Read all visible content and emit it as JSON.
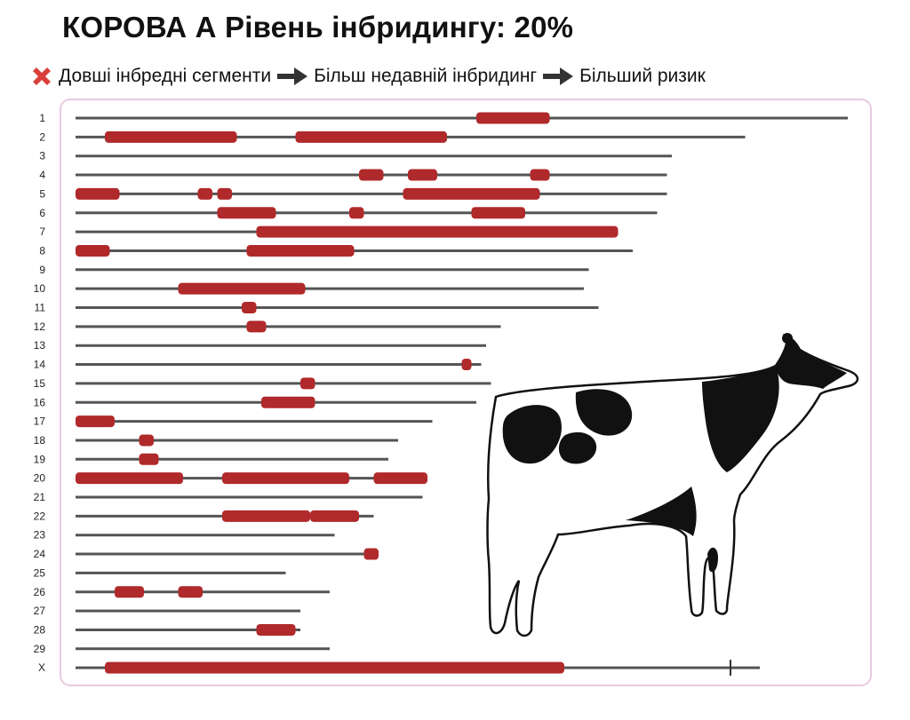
{
  "title": "КОРОВА А Рівень інбридингу: 20%",
  "legend": {
    "icon": "red-x-icon",
    "item1": "Довші інбредні сегменти",
    "arrow_icon": "right-arrow-icon",
    "item2": "Більш недавній інбридинг",
    "item3": "Більший ризик"
  },
  "colors": {
    "segment": "#b0292b",
    "chromosome": "#555555",
    "panel_border": "#e7cbe0",
    "x_mark": "#d9403a"
  },
  "chart_data": {
    "type": "diagram",
    "description_units": "relative chromosome position",
    "chromosomes": [
      {
        "label": "1",
        "length": 158,
        "segments": [
          [
            82,
            97
          ]
        ]
      },
      {
        "label": "2",
        "length": 137,
        "segments": [
          [
            6,
            33
          ],
          [
            45,
            76
          ]
        ]
      },
      {
        "label": "3",
        "length": 122,
        "segments": []
      },
      {
        "label": "4",
        "length": 121,
        "segments": [
          [
            58,
            63
          ],
          [
            68,
            74
          ],
          [
            93,
            97
          ]
        ]
      },
      {
        "label": "5",
        "length": 121,
        "segments": [
          [
            0,
            9
          ],
          [
            25,
            28
          ],
          [
            29,
            32
          ],
          [
            67,
            95
          ]
        ]
      },
      {
        "label": "6",
        "length": 119,
        "segments": [
          [
            29,
            41
          ],
          [
            56,
            59
          ],
          [
            81,
            92
          ]
        ]
      },
      {
        "label": "7",
        "length": 111,
        "segments": [
          [
            37,
            111
          ]
        ]
      },
      {
        "label": "8",
        "length": 114,
        "segments": [
          [
            0,
            7
          ],
          [
            35,
            57
          ]
        ]
      },
      {
        "label": "9",
        "length": 105,
        "segments": []
      },
      {
        "label": "10",
        "length": 104,
        "segments": [
          [
            21,
            47
          ]
        ]
      },
      {
        "label": "11",
        "length": 107,
        "segments": [
          [
            34,
            37
          ]
        ]
      },
      {
        "label": "12",
        "length": 87,
        "segments": [
          [
            35,
            39
          ]
        ]
      },
      {
        "label": "13",
        "length": 84,
        "segments": []
      },
      {
        "label": "14",
        "length": 83,
        "segments": [
          [
            79,
            81
          ]
        ]
      },
      {
        "label": "15",
        "length": 85,
        "segments": [
          [
            46,
            49
          ]
        ]
      },
      {
        "label": "16",
        "length": 82,
        "segments": [
          [
            38,
            49
          ]
        ]
      },
      {
        "label": "17",
        "length": 73,
        "segments": [
          [
            0,
            8
          ]
        ]
      },
      {
        "label": "18",
        "length": 66,
        "segments": [
          [
            13,
            16
          ]
        ]
      },
      {
        "label": "19",
        "length": 64,
        "segments": [
          [
            13,
            17
          ]
        ]
      },
      {
        "label": "20",
        "length": 72,
        "segments": [
          [
            0,
            22
          ],
          [
            30,
            56
          ],
          [
            61,
            72
          ]
        ]
      },
      {
        "label": "21",
        "length": 71,
        "segments": []
      },
      {
        "label": "22",
        "length": 61,
        "segments": [
          [
            30,
            48
          ],
          [
            48,
            58
          ]
        ]
      },
      {
        "label": "23",
        "length": 53,
        "segments": []
      },
      {
        "label": "24",
        "length": 62,
        "segments": [
          [
            59,
            62
          ]
        ]
      },
      {
        "label": "25",
        "length": 43,
        "segments": []
      },
      {
        "label": "26",
        "length": 52,
        "segments": [
          [
            8,
            14
          ],
          [
            21,
            26
          ]
        ]
      },
      {
        "label": "27",
        "length": 46,
        "segments": []
      },
      {
        "label": "28",
        "length": 46,
        "segments": [
          [
            37,
            45
          ]
        ]
      },
      {
        "label": "29",
        "length": 52,
        "segments": []
      },
      {
        "label": "X",
        "length": 140,
        "segments": [
          [
            6,
            100
          ]
        ],
        "marker": 134
      }
    ]
  }
}
